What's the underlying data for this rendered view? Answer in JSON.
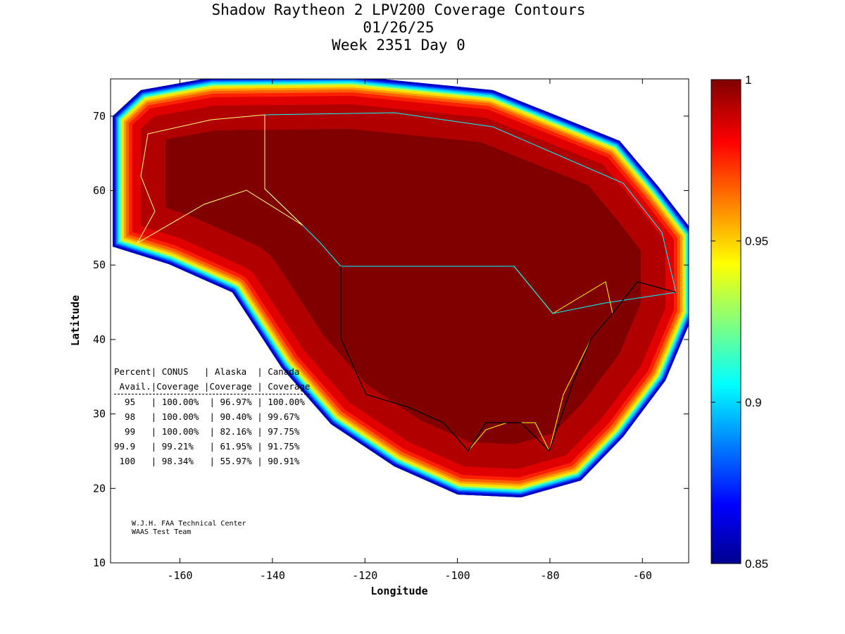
{
  "chart_data": {
    "type": "heatmap",
    "title_lines": [
      "Shadow Raytheon 2 LPV200 Coverage Contours",
      "01/26/25",
      "Week 2351 Day 0"
    ],
    "xlabel": "Longitude",
    "ylabel": "Latitude",
    "xlim": [
      -175,
      -50
    ],
    "ylim": [
      10,
      75
    ],
    "xticks": [
      -160,
      -140,
      -120,
      -100,
      -80,
      -60
    ],
    "yticks": [
      10,
      20,
      30,
      40,
      50,
      60,
      70
    ],
    "colorbar": {
      "range": [
        0.85,
        1
      ],
      "ticks": [
        0.85,
        0.9,
        0.95,
        1
      ],
      "tick_labels": [
        "0.85",
        "0.9",
        "0.95",
        "1"
      ],
      "colormap": "jet"
    },
    "table": {
      "header1": [
        "Percent",
        "CONUS",
        "Alaska",
        "Canada"
      ],
      "header2": [
        "Avail.",
        "Coverage",
        "Coverage",
        "Coverage"
      ],
      "rows": [
        [
          "95",
          "100.00%",
          "96.97%",
          "100.00%"
        ],
        [
          "98",
          "100.00%",
          "90.40%",
          "99.67%"
        ],
        [
          "99",
          "100.00%",
          "82.16%",
          "97.75%"
        ],
        [
          "99.9",
          "99.21%",
          "61.95%",
          "91.75%"
        ],
        [
          "100",
          "98.34%",
          "55.97%",
          "90.91%"
        ]
      ]
    },
    "credit": [
      "W.J.H. FAA Technical Center",
      "WAAS Test Team"
    ]
  }
}
